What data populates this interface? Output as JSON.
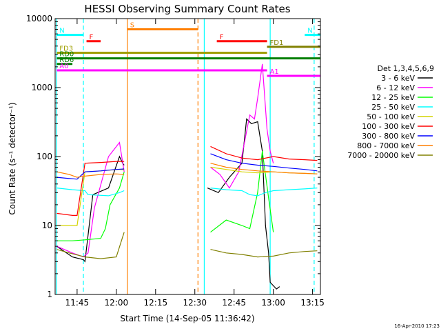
{
  "colors": {
    "background": "#ffffff",
    "axes": "#000000",
    "c_black": "#000000",
    "c_magenta": "#ff00ff",
    "c_green": "#00ff00",
    "c_cyan": "#00ffff",
    "c_yellow": "#d4d400",
    "c_red": "#ff0000",
    "c_blue": "#0000ff",
    "c_orange": "#ff7f00",
    "c_olive": "#808000",
    "c_darkgreen": "#007f00",
    "c_darkyellow": "#9e9e00"
  },
  "chart_data": {
    "type": "line",
    "title": "HESSI Observing Summary Count Rates",
    "xlabel": "Start Time (14-Sep-05 11:36:42)",
    "ylabel": "Count Rate (s⁻¹ detector⁻¹)",
    "footer": "16-Apr-2010 17:23",
    "y_scale": "log",
    "xlim_hours": [
      11.61,
      13.3
    ],
    "ylim": [
      1,
      10000
    ],
    "x_ticks": [
      {
        "t": 11.75,
        "label": "11:45"
      },
      {
        "t": 12.0,
        "label": "12:00"
      },
      {
        "t": 12.25,
        "label": "12:15"
      },
      {
        "t": 12.5,
        "label": "12:30"
      },
      {
        "t": 12.75,
        "label": "12:45"
      },
      {
        "t": 13.0,
        "label": "13:00"
      },
      {
        "t": 13.25,
        "label": "13:15"
      }
    ],
    "y_ticks": [
      {
        "v": 1,
        "label": "1"
      },
      {
        "v": 10,
        "label": "10"
      },
      {
        "v": 100,
        "label": "100"
      },
      {
        "v": 1000,
        "label": "1000"
      },
      {
        "v": 10000,
        "label": "10000"
      }
    ],
    "legend": {
      "placement": "right",
      "header": "Det 1,3,4,5,6,9"
    },
    "series": [
      {
        "name": "3 - 6 keV",
        "color": "#000000",
        "x": [
          11.62,
          11.72,
          11.79,
          11.8,
          11.85,
          11.95,
          12.02,
          12.04,
          12.05,
          12.57,
          12.58,
          12.65,
          12.72,
          12.8,
          12.83,
          12.86,
          12.9,
          12.93,
          12.95,
          12.97,
          12.98,
          13.02,
          13.04
        ],
        "y": [
          5,
          3.5,
          3.2,
          3,
          28,
          35,
          100,
          80,
          75,
          null,
          35,
          30,
          50,
          80,
          350,
          300,
          320,
          120,
          10,
          4,
          1.5,
          1.2,
          1.3
        ]
      },
      {
        "name": "6 - 12 keV",
        "color": "#ff00ff",
        "x": [
          11.62,
          11.72,
          11.79,
          11.82,
          11.86,
          11.95,
          12.02,
          12.05,
          12.57,
          12.6,
          12.66,
          12.72,
          12.78,
          12.85,
          12.88,
          12.9,
          12.93,
          12.96,
          12.98,
          13.0
        ],
        "y": [
          5,
          4,
          3.5,
          4,
          18,
          100,
          160,
          60,
          null,
          70,
          55,
          35,
          60,
          400,
          350,
          700,
          2200,
          250,
          120,
          80
        ]
      },
      {
        "name": "12 - 25 keV",
        "color": "#00ff00",
        "x": [
          11.62,
          11.72,
          11.8,
          11.9,
          11.93,
          11.96,
          12.02,
          12.05,
          12.57,
          12.6,
          12.7,
          12.8,
          12.85,
          12.9,
          12.93,
          12.97,
          13.0
        ],
        "y": [
          6,
          6,
          6.2,
          6.5,
          9,
          20,
          35,
          60,
          null,
          8,
          12,
          10,
          9,
          30,
          120,
          25,
          8
        ]
      },
      {
        "name": "25 - 50 keV",
        "color": "#00ffff",
        "x": [
          11.62,
          11.72,
          11.8,
          11.82,
          11.95,
          12.02,
          12.05,
          12.57,
          12.6,
          12.7,
          12.8,
          12.85,
          12.9,
          12.95,
          13.0,
          13.1,
          13.2,
          13.28
        ],
        "y": [
          35,
          33,
          32,
          28,
          27,
          30,
          32,
          null,
          35,
          33,
          32,
          28,
          27,
          30,
          32,
          33,
          34,
          35
        ]
      },
      {
        "name": "50 - 100 keV",
        "color": "#d4d400",
        "x": [
          11.62,
          11.72,
          11.75,
          11.8,
          11.9,
          12.02,
          12.05,
          12.57,
          12.6,
          12.7,
          12.8,
          12.9,
          13.0,
          13.1,
          13.2,
          13.28
        ],
        "y": [
          10,
          10,
          10,
          60,
          62,
          65,
          64,
          null,
          70,
          65,
          60,
          58,
          60,
          58,
          57,
          56
        ]
      },
      {
        "name": "100 - 300 keV",
        "color": "#ff0000",
        "x": [
          11.62,
          11.72,
          11.75,
          11.8,
          11.9,
          12.0,
          12.05,
          12.57,
          12.6,
          12.7,
          12.8,
          12.9,
          13.0,
          13.1,
          13.2,
          13.28
        ],
        "y": [
          15,
          14,
          14,
          80,
          82,
          85,
          85,
          null,
          140,
          110,
          95,
          90,
          100,
          92,
          90,
          88
        ]
      },
      {
        "name": "300 - 800 keV",
        "color": "#0000ff",
        "x": [
          11.62,
          11.7,
          11.75,
          11.8,
          11.9,
          12.0,
          12.05,
          12.57,
          12.6,
          12.7,
          12.8,
          12.9,
          13.0,
          13.1,
          13.2,
          13.28
        ],
        "y": [
          50,
          48,
          47,
          60,
          62,
          65,
          66,
          null,
          110,
          90,
          80,
          75,
          72,
          68,
          65,
          62
        ]
      },
      {
        "name": "800 - 7000 keV",
        "color": "#ff7f00",
        "x": [
          11.62,
          11.7,
          11.75,
          11.8,
          11.9,
          12.0,
          12.05,
          12.57,
          12.6,
          12.7,
          12.8,
          12.9,
          13.0,
          13.1,
          13.2,
          13.28
        ],
        "y": [
          60,
          55,
          50,
          52,
          55,
          56,
          55,
          null,
          80,
          70,
          65,
          62,
          60,
          58,
          57,
          56
        ]
      },
      {
        "name": "7000 - 20000 keV",
        "color": "#808000",
        "x": [
          11.62,
          11.7,
          11.8,
          11.9,
          12.0,
          12.05,
          12.57,
          12.6,
          12.7,
          12.8,
          12.9,
          13.0,
          13.1,
          13.2,
          13.28
        ],
        "y": [
          4.5,
          4,
          3.5,
          3.3,
          3.5,
          8,
          null,
          4.5,
          4,
          3.8,
          3.5,
          3.6,
          4,
          4.2,
          4.3
        ]
      }
    ],
    "flags": [
      {
        "label": "N",
        "color": "#00ffff",
        "x": [
          11.62,
          11.79
        ],
        "v": 5800
      },
      {
        "label": "N",
        "color": "#00ffff",
        "x": [
          13.2,
          13.3
        ],
        "v": 5800
      },
      {
        "label": "S",
        "color": "#ff7f00",
        "x": [
          12.07,
          12.52
        ],
        "v": 7000
      },
      {
        "label": "F",
        "color": "#ff0000",
        "x": [
          11.81,
          11.9
        ],
        "v": 4700
      },
      {
        "label": "F",
        "color": "#ff0000",
        "x": [
          12.64,
          12.96
        ],
        "v": 4700
      },
      {
        "label": "FD1",
        "color": "#808000",
        "x": [
          12.96,
          13.3
        ],
        "v": 3900
      },
      {
        "label": "FD3",
        "color": "#9e9e00",
        "x": [
          11.62,
          12.96
        ],
        "v": 3200
      },
      {
        "label": "RD0",
        "color": "#007f00",
        "x": [
          11.62,
          13.3
        ],
        "v": 2650
      },
      {
        "label": "RD6",
        "color": "#007f00",
        "x": [
          11.62,
          11.72
        ],
        "v": 2200
      },
      {
        "label": "A0",
        "color": "#ff00ff",
        "x": [
          11.62,
          12.96
        ],
        "v": 1780
      },
      {
        "label": "A1",
        "color": "#ff00ff",
        "x": [
          12.96,
          13.3
        ],
        "v": 1480
      }
    ],
    "vlines": [
      {
        "t": 11.62,
        "color": "#00ffff",
        "style": "solid"
      },
      {
        "t": 11.79,
        "color": "#00ffff",
        "style": "dashed"
      },
      {
        "t": 12.07,
        "color": "#ff7f00",
        "style": "solid"
      },
      {
        "t": 12.52,
        "color": "#ff7f00",
        "style": "dashed"
      },
      {
        "t": 12.56,
        "color": "#00ffff",
        "style": "solid"
      },
      {
        "t": 12.98,
        "color": "#00ffff",
        "style": "solid"
      },
      {
        "t": 13.26,
        "color": "#00ffff",
        "style": "dashed"
      }
    ]
  }
}
